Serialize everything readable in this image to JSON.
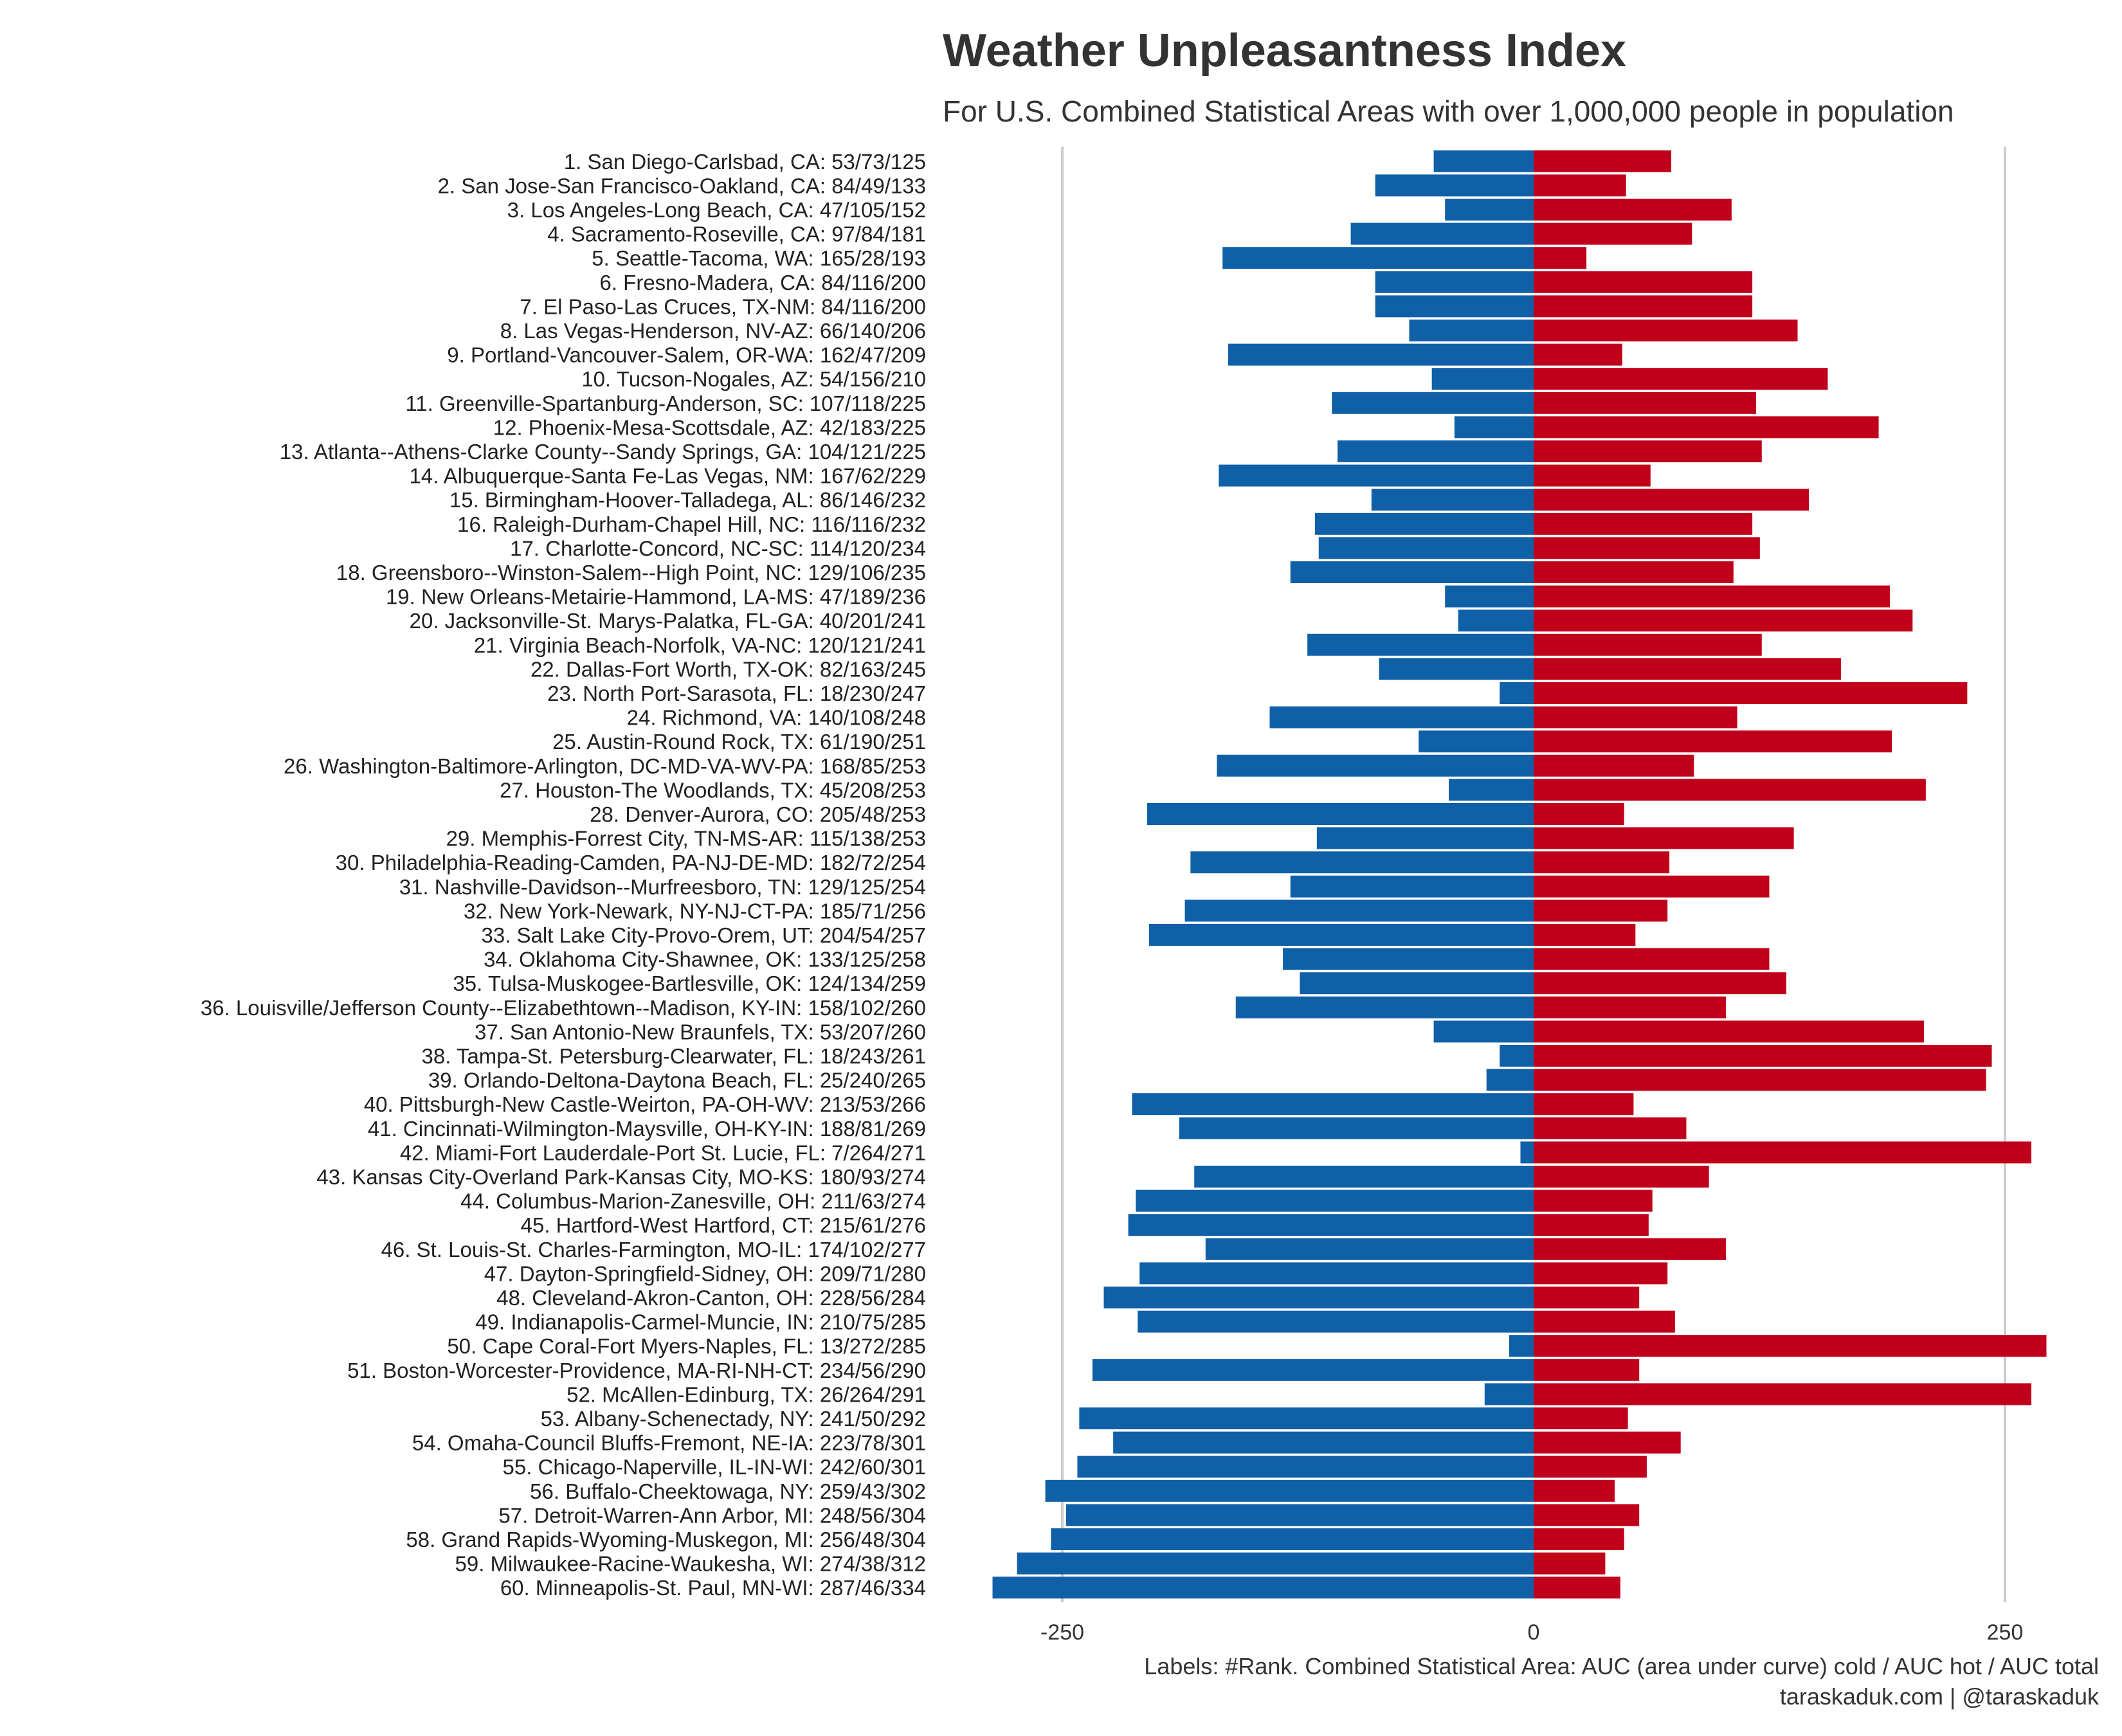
{
  "chart_data": {
    "type": "bar",
    "orientation": "horizontal-diverging",
    "title": "Weather Unpleasantness Index",
    "subtitle": "For U.S. Combined Statistical Areas with over 1,000,000 people in population",
    "xlim": [
      -310,
      275
    ],
    "xticks": [
      -250,
      0,
      250
    ],
    "xtick_labels": [
      "-250",
      "0",
      "250"
    ],
    "grid": "vertical lines at ticks",
    "colors": {
      "cold": "#1060A8",
      "hot": "#C0001A",
      "grid": "#CCCCCC"
    },
    "categories": [
      "1. San Diego-Carlsbad, CA: 53/73/125",
      "2. San Jose-San Francisco-Oakland, CA: 84/49/133",
      "3. Los Angeles-Long Beach, CA: 47/105/152",
      "4. Sacramento-Roseville, CA: 97/84/181",
      "5. Seattle-Tacoma, WA: 165/28/193",
      "6. Fresno-Madera, CA: 84/116/200",
      "7. El Paso-Las Cruces, TX-NM: 84/116/200",
      "8. Las Vegas-Henderson, NV-AZ: 66/140/206",
      "9. Portland-Vancouver-Salem, OR-WA: 162/47/209",
      "10. Tucson-Nogales, AZ: 54/156/210",
      "11. Greenville-Spartanburg-Anderson, SC: 107/118/225",
      "12. Phoenix-Mesa-Scottsdale, AZ: 42/183/225",
      "13. Atlanta--Athens-Clarke County--Sandy Springs, GA: 104/121/225",
      "14. Albuquerque-Santa Fe-Las Vegas, NM: 167/62/229",
      "15. Birmingham-Hoover-Talladega, AL: 86/146/232",
      "16. Raleigh-Durham-Chapel Hill, NC: 116/116/232",
      "17. Charlotte-Concord, NC-SC: 114/120/234",
      "18. Greensboro--Winston-Salem--High Point, NC: 129/106/235",
      "19. New Orleans-Metairie-Hammond, LA-MS: 47/189/236",
      "20. Jacksonville-St. Marys-Palatka, FL-GA: 40/201/241",
      "21. Virginia Beach-Norfolk, VA-NC: 120/121/241",
      "22. Dallas-Fort Worth, TX-OK: 82/163/245",
      "23. North Port-Sarasota, FL: 18/230/247",
      "24. Richmond, VA: 140/108/248",
      "25. Austin-Round Rock, TX: 61/190/251",
      "26. Washington-Baltimore-Arlington, DC-MD-VA-WV-PA: 168/85/253",
      "27. Houston-The Woodlands, TX: 45/208/253",
      "28. Denver-Aurora, CO: 205/48/253",
      "29. Memphis-Forrest City, TN-MS-AR: 115/138/253",
      "30. Philadelphia-Reading-Camden, PA-NJ-DE-MD: 182/72/254",
      "31. Nashville-Davidson--Murfreesboro, TN: 129/125/254",
      "32. New York-Newark, NY-NJ-CT-PA: 185/71/256",
      "33. Salt Lake City-Provo-Orem, UT: 204/54/257",
      "34. Oklahoma City-Shawnee, OK: 133/125/258",
      "35. Tulsa-Muskogee-Bartlesville, OK: 124/134/259",
      "36. Louisville/Jefferson County--Elizabethtown--Madison, KY-IN: 158/102/260",
      "37. San Antonio-New Braunfels, TX: 53/207/260",
      "38. Tampa-St. Petersburg-Clearwater, FL: 18/243/261",
      "39. Orlando-Deltona-Daytona Beach, FL: 25/240/265",
      "40. Pittsburgh-New Castle-Weirton, PA-OH-WV: 213/53/266",
      "41. Cincinnati-Wilmington-Maysville, OH-KY-IN: 188/81/269",
      "42. Miami-Fort Lauderdale-Port St. Lucie, FL: 7/264/271",
      "43. Kansas City-Overland Park-Kansas City, MO-KS: 180/93/274",
      "44. Columbus-Marion-Zanesville, OH: 211/63/274",
      "45. Hartford-West Hartford, CT: 215/61/276",
      "46. St. Louis-St. Charles-Farmington, MO-IL: 174/102/277",
      "47. Dayton-Springfield-Sidney, OH: 209/71/280",
      "48. Cleveland-Akron-Canton, OH: 228/56/284",
      "49. Indianapolis-Carmel-Muncie, IN: 210/75/285",
      "50. Cape Coral-Fort Myers-Naples, FL: 13/272/285",
      "51. Boston-Worcester-Providence, MA-RI-NH-CT: 234/56/290",
      "52. McAllen-Edinburg, TX: 26/264/291",
      "53. Albany-Schenectady, NY: 241/50/292",
      "54. Omaha-Council Bluffs-Fremont, NE-IA: 223/78/301",
      "55. Chicago-Naperville, IL-IN-WI: 242/60/301",
      "56. Buffalo-Cheektowaga, NY: 259/43/302",
      "57. Detroit-Warren-Ann Arbor, MI: 248/56/304",
      "58. Grand Rapids-Wyoming-Muskegon, MI: 256/48/304",
      "59. Milwaukee-Racine-Waukesha, WI: 274/38/312",
      "60. Minneapolis-St. Paul, MN-WI: 287/46/334"
    ],
    "cold": [
      53,
      84,
      47,
      97,
      165,
      84,
      84,
      66,
      162,
      54,
      107,
      42,
      104,
      167,
      86,
      116,
      114,
      129,
      47,
      40,
      120,
      82,
      18,
      140,
      61,
      168,
      45,
      205,
      115,
      182,
      129,
      185,
      204,
      133,
      124,
      158,
      53,
      18,
      25,
      213,
      188,
      7,
      180,
      211,
      215,
      174,
      209,
      228,
      210,
      13,
      234,
      26,
      241,
      223,
      242,
      259,
      248,
      256,
      274,
      287
    ],
    "hot": [
      73,
      49,
      105,
      84,
      28,
      116,
      116,
      140,
      47,
      156,
      118,
      183,
      121,
      62,
      146,
      116,
      120,
      106,
      189,
      201,
      121,
      163,
      230,
      108,
      190,
      85,
      208,
      48,
      138,
      72,
      125,
      71,
      54,
      125,
      134,
      102,
      207,
      243,
      240,
      53,
      81,
      264,
      93,
      63,
      61,
      102,
      71,
      56,
      75,
      272,
      56,
      264,
      50,
      78,
      60,
      43,
      56,
      48,
      38,
      46
    ]
  },
  "caption": {
    "line1": "Labels: #Rank. Combined Statistical Area: AUC (area under curve) cold / AUC hot / AUC total",
    "line2": "taraskaduk.com | @taraskaduk"
  }
}
